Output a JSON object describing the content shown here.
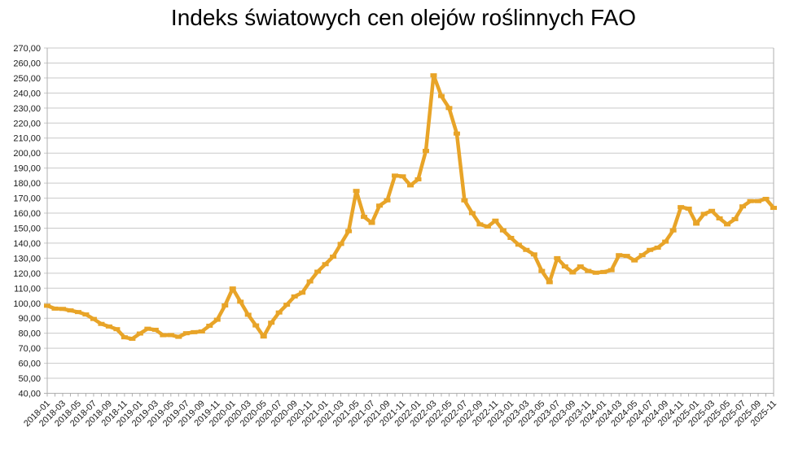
{
  "title": "Indeks światowych cen olejów roślinnych FAO",
  "colors": {
    "series": "#E8A428",
    "grid": "#C9C9C9",
    "axis": "#AFAFAF",
    "text": "#1A1A1A",
    "background": "#FFFFFF"
  },
  "y_axis": {
    "min": 40,
    "max": 270,
    "step": 10,
    "labels": [
      "270,00",
      "260,00",
      "250,00",
      "240,00",
      "230,00",
      "220,00",
      "210,00",
      "200,00",
      "190,00",
      "180,00",
      "170,00",
      "160,00",
      "150,00",
      "140,00",
      "130,00",
      "120,00",
      "110,00",
      "100,00",
      "90,00",
      "80,00",
      "70,00",
      "60,00",
      "50,00",
      "40,00"
    ]
  },
  "x_axis": {
    "label_every_n_months": 2,
    "labels": [
      "2018-01",
      "2018-03",
      "2018-05",
      "2018-07",
      "2018-09",
      "2018-11",
      "2019-01",
      "2019-03",
      "2019-05",
      "2019-07",
      "2019-09",
      "2019-11",
      "2020-01",
      "2020-03",
      "2020-05",
      "2020-07",
      "2020-09",
      "2020-11",
      "2021-01",
      "2021-03",
      "2021-05",
      "2021-07",
      "2021-09",
      "2021-11",
      "2022-01",
      "2022-03",
      "2022-05",
      "2022-07",
      "2022-09",
      "2022-11",
      "2023-01",
      "2023-03",
      "2023-05",
      "2023-07",
      "2023-09",
      "2023-11",
      "2024-01",
      "2024-03",
      "2024-05",
      "2024-07",
      "2024-09",
      "2024-11",
      "2025-01",
      "2025-03",
      "2025-05",
      "2025-07",
      "2025-09",
      "2025-11"
    ]
  },
  "chart_data": {
    "type": "line",
    "title": "Indeks światowych cen olejów roślinnych FAO",
    "xlabel": "",
    "ylabel": "",
    "ylim": [
      40,
      270
    ],
    "grid": "horizontal",
    "legend": "none",
    "marker": "square-dash",
    "x": [
      "2018-01",
      "2018-02",
      "2018-03",
      "2018-04",
      "2018-05",
      "2018-06",
      "2018-07",
      "2018-08",
      "2018-09",
      "2018-10",
      "2018-11",
      "2018-12",
      "2019-01",
      "2019-02",
      "2019-03",
      "2019-04",
      "2019-05",
      "2019-06",
      "2019-07",
      "2019-08",
      "2019-09",
      "2019-10",
      "2019-11",
      "2019-12",
      "2020-01",
      "2020-02",
      "2020-03",
      "2020-04",
      "2020-05",
      "2020-06",
      "2020-07",
      "2020-08",
      "2020-09",
      "2020-10",
      "2020-11",
      "2020-12",
      "2021-01",
      "2021-02",
      "2021-03",
      "2021-04",
      "2021-05",
      "2021-06",
      "2021-07",
      "2021-08",
      "2021-09",
      "2021-10",
      "2021-11",
      "2021-12",
      "2022-01",
      "2022-02",
      "2022-03",
      "2022-04",
      "2022-05",
      "2022-06",
      "2022-07",
      "2022-08",
      "2022-09",
      "2022-10",
      "2022-11",
      "2022-12",
      "2023-01",
      "2023-02",
      "2023-03",
      "2023-04",
      "2023-05",
      "2023-06",
      "2023-07",
      "2023-08",
      "2023-09",
      "2023-10",
      "2023-11",
      "2023-12",
      "2024-01",
      "2024-02",
      "2024-03",
      "2024-04",
      "2024-05",
      "2024-06",
      "2024-07",
      "2024-08",
      "2024-09",
      "2024-10",
      "2024-11",
      "2024-12",
      "2025-01",
      "2025-02",
      "2025-03",
      "2025-04",
      "2025-05",
      "2025-06",
      "2025-07",
      "2025-08",
      "2025-09",
      "2025-10",
      "2025-11"
    ],
    "values": [
      98.3,
      96.4,
      96.2,
      95.2,
      94.1,
      92.5,
      89.5,
      86.2,
      84.5,
      82.7,
      77.3,
      76.3,
      79.8,
      83.0,
      82.3,
      78.7,
      78.8,
      77.6,
      80.0,
      80.7,
      81.2,
      85.0,
      89.0,
      98.5,
      109.8,
      101.0,
      92.3,
      85.2,
      77.8,
      87.0,
      93.8,
      99.0,
      104.5,
      107.0,
      114.5,
      121.0,
      126.0,
      131.0,
      139.5,
      148.0,
      174.8,
      157.5,
      153.5,
      165.0,
      168.5,
      185.0,
      184.5,
      178.5,
      182.5,
      201.5,
      251.8,
      238.0,
      230.0,
      213.0,
      168.5,
      160.0,
      152.5,
      151.0,
      155.0,
      148.5,
      143.5,
      139.0,
      135.5,
      132.5,
      121.5,
      114.0,
      130.0,
      124.5,
      120.5,
      124.5,
      121.5,
      120.3,
      120.8,
      122.0,
      132.0,
      131.5,
      128.5,
      132.0,
      135.5,
      137.0,
      141.0,
      148.5,
      164.0,
      163.0,
      153.0,
      159.5,
      161.5,
      156.5,
      152.5,
      156.0,
      164.5,
      168.0,
      168.0,
      169.5,
      163.5
    ]
  }
}
